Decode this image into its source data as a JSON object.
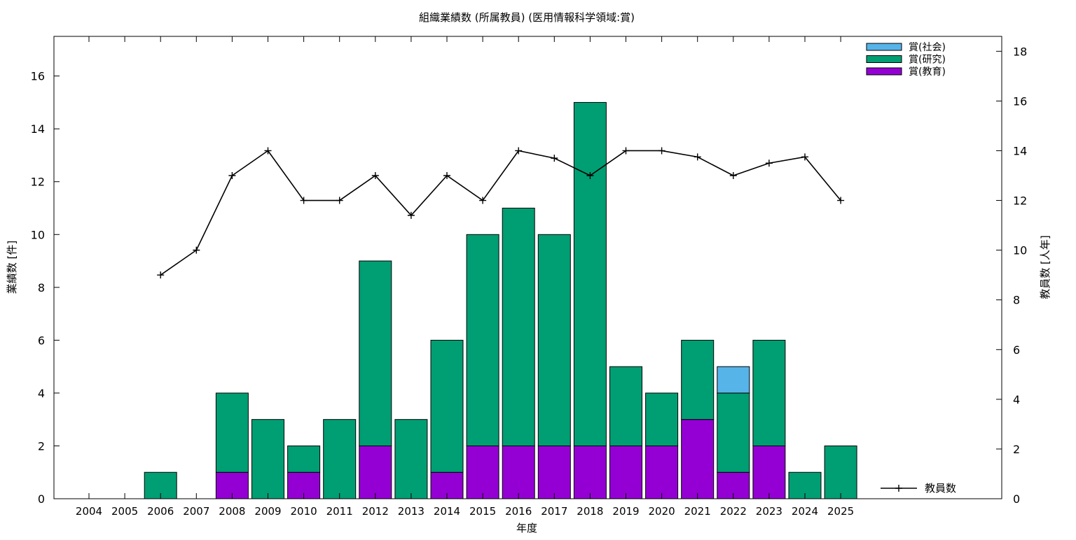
{
  "chart_data": {
    "type": "bar",
    "title": "組織業績数 (所属教員) (医用情報科学領域:賞)",
    "xlabel": "年度",
    "ylabel": "業績数 [件]",
    "y2label": "教員数 [人年]",
    "ylim": [
      0,
      17.5
    ],
    "y2lim": [
      0,
      18.6
    ],
    "yticks": [
      0,
      2,
      4,
      6,
      8,
      10,
      12,
      14,
      16
    ],
    "y2ticks": [
      0,
      2,
      4,
      6,
      8,
      10,
      12,
      14,
      16,
      18
    ],
    "stacked": true,
    "grid": false,
    "legend_position": "top-right",
    "categories": [
      "2004",
      "2005",
      "2006",
      "2007",
      "2008",
      "2009",
      "2010",
      "2011",
      "2012",
      "2013",
      "2014",
      "2015",
      "2016",
      "2017",
      "2018",
      "2019",
      "2020",
      "2021",
      "2022",
      "2023",
      "2024",
      "2025"
    ],
    "series": [
      {
        "name": "賞(教育)",
        "color": "#9400d3",
        "values": [
          0,
          0,
          0,
          0,
          1,
          0,
          1,
          0,
          2,
          0,
          1,
          2,
          2,
          2,
          2,
          2,
          2,
          3,
          1,
          2,
          0,
          0
        ]
      },
      {
        "name": "賞(研究)",
        "color": "#009e73",
        "values": [
          0,
          0,
          1,
          0,
          3,
          3,
          1,
          3,
          7,
          3,
          5,
          8,
          9,
          8,
          13,
          3,
          2,
          3,
          3,
          4,
          1,
          2
        ]
      },
      {
        "name": "賞(社会)",
        "color": "#56b4e9",
        "values": [
          0,
          0,
          0,
          0,
          0,
          0,
          0,
          0,
          0,
          0,
          0,
          0,
          0,
          0,
          0,
          0,
          0,
          0,
          1,
          0,
          0,
          0
        ]
      }
    ],
    "line_series": {
      "name": "教員数",
      "axis": "y2",
      "color": "#000000",
      "values": [
        null,
        null,
        9,
        10,
        13,
        14,
        12,
        12,
        13,
        11.4,
        13,
        12,
        14,
        13.7,
        13,
        14,
        14,
        13.75,
        13,
        13.5,
        13.75,
        12
      ]
    }
  }
}
